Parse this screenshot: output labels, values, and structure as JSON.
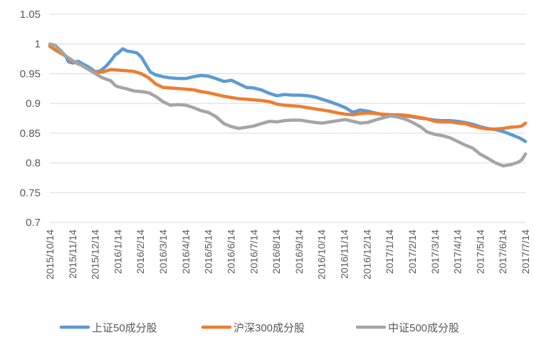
{
  "chart_data": {
    "type": "line",
    "title": "",
    "xlabel": "",
    "ylabel": "",
    "ylim": [
      0.7,
      1.05
    ],
    "yticks": [
      "0.7",
      "0.75",
      "0.8",
      "0.85",
      "0.9",
      "0.95",
      "1",
      "1.05"
    ],
    "grid": "horizontal",
    "legend_position": "bottom",
    "categories": [
      "2015/10/14",
      "2015/11/14",
      "2015/12/14",
      "2016/1/14",
      "2016/2/14",
      "2016/3/14",
      "2016/4/14",
      "2016/5/14",
      "2016/6/14",
      "2016/7/14",
      "2016/8/14",
      "2016/9/14",
      "2016/10/14",
      "2016/11/14",
      "2016/12/14",
      "2017/1/14",
      "2017/2/14",
      "2017/3/14",
      "2017/4/14",
      "2017/5/14",
      "2017/6/14",
      "2017/7/14"
    ],
    "x_end": "2017/7/14",
    "series": [
      {
        "name": "上证50成分股",
        "color": "#5B9BD5",
        "points": [
          [
            "2015/10/14",
            0.998
          ],
          [
            "2015/10/21",
            0.99
          ],
          [
            "2015/10/28",
            0.985
          ],
          [
            "2015/11/4",
            0.98
          ],
          [
            "2015/11/8",
            0.97
          ],
          [
            "2015/11/14",
            0.968
          ],
          [
            "2015/11/21",
            0.971
          ],
          [
            "2015/11/28",
            0.966
          ],
          [
            "2015/12/4",
            0.962
          ],
          [
            "2015/12/10",
            0.957
          ],
          [
            "2015/12/14",
            0.953
          ],
          [
            "2015/12/21",
            0.955
          ],
          [
            "2015/12/28",
            0.962
          ],
          [
            "2016/1/4",
            0.972
          ],
          [
            "2016/1/10",
            0.982
          ],
          [
            "2016/1/14",
            0.985
          ],
          [
            "2016/1/20",
            0.992
          ],
          [
            "2016/1/26",
            0.988
          ],
          [
            "2016/2/1",
            0.987
          ],
          [
            "2016/2/8",
            0.985
          ],
          [
            "2016/2/14",
            0.978
          ],
          [
            "2016/2/20",
            0.965
          ],
          [
            "2016/2/26",
            0.953
          ],
          [
            "2016/3/4",
            0.948
          ],
          [
            "2016/3/14",
            0.945
          ],
          [
            "2016/3/24",
            0.943
          ],
          [
            "2016/4/4",
            0.942
          ],
          [
            "2016/4/14",
            0.942
          ],
          [
            "2016/4/24",
            0.945
          ],
          [
            "2016/5/4",
            0.947
          ],
          [
            "2016/5/14",
            0.946
          ],
          [
            "2016/5/24",
            0.942
          ],
          [
            "2016/6/4",
            0.937
          ],
          [
            "2016/6/14",
            0.939
          ],
          [
            "2016/6/24",
            0.933
          ],
          [
            "2016/7/4",
            0.927
          ],
          [
            "2016/7/14",
            0.926
          ],
          [
            "2016/7/24",
            0.923
          ],
          [
            "2016/8/4",
            0.917
          ],
          [
            "2016/8/14",
            0.913
          ],
          [
            "2016/8/24",
            0.915
          ],
          [
            "2016/9/4",
            0.914
          ],
          [
            "2016/9/14",
            0.914
          ],
          [
            "2016/9/24",
            0.913
          ],
          [
            "2016/10/4",
            0.911
          ],
          [
            "2016/10/14",
            0.907
          ],
          [
            "2016/10/24",
            0.903
          ],
          [
            "2016/11/4",
            0.898
          ],
          [
            "2016/11/14",
            0.893
          ],
          [
            "2016/11/24",
            0.885
          ],
          [
            "2016/12/4",
            0.889
          ],
          [
            "2016/12/14",
            0.887
          ],
          [
            "2016/12/24",
            0.884
          ],
          [
            "2017/1/4",
            0.881
          ],
          [
            "2017/1/14",
            0.88
          ],
          [
            "2017/1/24",
            0.88
          ],
          [
            "2017/2/4",
            0.879
          ],
          [
            "2017/2/14",
            0.877
          ],
          [
            "2017/2/24",
            0.875
          ],
          [
            "2017/3/4",
            0.874
          ],
          [
            "2017/3/14",
            0.872
          ],
          [
            "2017/3/24",
            0.871
          ],
          [
            "2017/4/4",
            0.871
          ],
          [
            "2017/4/14",
            0.87
          ],
          [
            "2017/4/24",
            0.868
          ],
          [
            "2017/5/4",
            0.865
          ],
          [
            "2017/5/14",
            0.861
          ],
          [
            "2017/5/24",
            0.858
          ],
          [
            "2017/6/4",
            0.856
          ],
          [
            "2017/6/14",
            0.853
          ],
          [
            "2017/6/24",
            0.848
          ],
          [
            "2017/7/4",
            0.843
          ],
          [
            "2017/7/9",
            0.84
          ],
          [
            "2017/7/14",
            0.836
          ]
        ]
      },
      {
        "name": "沪深300成分股",
        "color": "#ED7D31",
        "points": [
          [
            "2015/10/14",
            0.996
          ],
          [
            "2015/10/24",
            0.988
          ],
          [
            "2015/11/4",
            0.98
          ],
          [
            "2015/11/14",
            0.97
          ],
          [
            "2015/11/24",
            0.965
          ],
          [
            "2015/12/4",
            0.958
          ],
          [
            "2015/12/14",
            0.952
          ],
          [
            "2015/12/24",
            0.953
          ],
          [
            "2016/1/4",
            0.957
          ],
          [
            "2016/1/14",
            0.956
          ],
          [
            "2016/1/24",
            0.955
          ],
          [
            "2016/2/4",
            0.954
          ],
          [
            "2016/2/14",
            0.95
          ],
          [
            "2016/2/24",
            0.943
          ],
          [
            "2016/3/4",
            0.933
          ],
          [
            "2016/3/14",
            0.927
          ],
          [
            "2016/3/24",
            0.926
          ],
          [
            "2016/4/4",
            0.925
          ],
          [
            "2016/4/14",
            0.924
          ],
          [
            "2016/4/24",
            0.923
          ],
          [
            "2016/5/4",
            0.92
          ],
          [
            "2016/5/14",
            0.918
          ],
          [
            "2016/5/24",
            0.915
          ],
          [
            "2016/6/4",
            0.912
          ],
          [
            "2016/6/14",
            0.91
          ],
          [
            "2016/6/24",
            0.908
          ],
          [
            "2016/7/4",
            0.907
          ],
          [
            "2016/7/14",
            0.906
          ],
          [
            "2016/7/24",
            0.905
          ],
          [
            "2016/8/4",
            0.903
          ],
          [
            "2016/8/14",
            0.899
          ],
          [
            "2016/8/24",
            0.897
          ],
          [
            "2016/9/4",
            0.896
          ],
          [
            "2016/9/14",
            0.895
          ],
          [
            "2016/9/24",
            0.893
          ],
          [
            "2016/10/4",
            0.891
          ],
          [
            "2016/10/14",
            0.889
          ],
          [
            "2016/10/24",
            0.887
          ],
          [
            "2016/11/4",
            0.884
          ],
          [
            "2016/11/14",
            0.882
          ],
          [
            "2016/11/24",
            0.881
          ],
          [
            "2016/12/4",
            0.883
          ],
          [
            "2016/12/14",
            0.884
          ],
          [
            "2016/12/24",
            0.883
          ],
          [
            "2017/1/4",
            0.882
          ],
          [
            "2017/1/14",
            0.881
          ],
          [
            "2017/1/24",
            0.881
          ],
          [
            "2017/2/4",
            0.88
          ],
          [
            "2017/2/14",
            0.878
          ],
          [
            "2017/2/24",
            0.876
          ],
          [
            "2017/3/4",
            0.874
          ],
          [
            "2017/3/14",
            0.87
          ],
          [
            "2017/3/24",
            0.869
          ],
          [
            "2017/4/4",
            0.869
          ],
          [
            "2017/4/14",
            0.867
          ],
          [
            "2017/4/24",
            0.866
          ],
          [
            "2017/5/4",
            0.862
          ],
          [
            "2017/5/14",
            0.859
          ],
          [
            "2017/5/24",
            0.857
          ],
          [
            "2017/6/4",
            0.857
          ],
          [
            "2017/6/14",
            0.858
          ],
          [
            "2017/6/24",
            0.86
          ],
          [
            "2017/7/4",
            0.861
          ],
          [
            "2017/7/9",
            0.862
          ],
          [
            "2017/7/14",
            0.867
          ]
        ]
      },
      {
        "name": "中证500成分股",
        "color": "#A5A5A5",
        "points": [
          [
            "2015/10/14",
            1.0
          ],
          [
            "2015/10/21",
            0.998
          ],
          [
            "2015/10/28",
            0.99
          ],
          [
            "2015/11/4",
            0.98
          ],
          [
            "2015/11/14",
            0.972
          ],
          [
            "2015/11/24",
            0.965
          ],
          [
            "2015/12/4",
            0.958
          ],
          [
            "2015/12/14",
            0.95
          ],
          [
            "2015/12/24",
            0.943
          ],
          [
            "2016/1/4",
            0.938
          ],
          [
            "2016/1/10",
            0.93
          ],
          [
            "2016/1/14",
            0.928
          ],
          [
            "2016/1/24",
            0.925
          ],
          [
            "2016/2/4",
            0.921
          ],
          [
            "2016/2/14",
            0.92
          ],
          [
            "2016/2/24",
            0.918
          ],
          [
            "2016/3/4",
            0.912
          ],
          [
            "2016/3/14",
            0.903
          ],
          [
            "2016/3/24",
            0.897
          ],
          [
            "2016/4/4",
            0.898
          ],
          [
            "2016/4/14",
            0.897
          ],
          [
            "2016/4/24",
            0.893
          ],
          [
            "2016/5/4",
            0.888
          ],
          [
            "2016/5/14",
            0.885
          ],
          [
            "2016/5/24",
            0.878
          ],
          [
            "2016/6/4",
            0.866
          ],
          [
            "2016/6/14",
            0.861
          ],
          [
            "2016/6/24",
            0.858
          ],
          [
            "2016/7/4",
            0.86
          ],
          [
            "2016/7/14",
            0.862
          ],
          [
            "2016/7/24",
            0.866
          ],
          [
            "2016/8/4",
            0.87
          ],
          [
            "2016/8/14",
            0.869
          ],
          [
            "2016/8/24",
            0.871
          ],
          [
            "2016/9/4",
            0.872
          ],
          [
            "2016/9/14",
            0.872
          ],
          [
            "2016/9/24",
            0.87
          ],
          [
            "2016/10/4",
            0.868
          ],
          [
            "2016/10/14",
            0.867
          ],
          [
            "2016/10/24",
            0.869
          ],
          [
            "2016/11/4",
            0.871
          ],
          [
            "2016/11/14",
            0.873
          ],
          [
            "2016/11/24",
            0.87
          ],
          [
            "2016/12/4",
            0.867
          ],
          [
            "2016/12/14",
            0.868
          ],
          [
            "2016/12/24",
            0.872
          ],
          [
            "2017/1/4",
            0.876
          ],
          [
            "2017/1/14",
            0.879
          ],
          [
            "2017/1/24",
            0.877
          ],
          [
            "2017/2/4",
            0.873
          ],
          [
            "2017/2/14",
            0.867
          ],
          [
            "2017/2/24",
            0.86
          ],
          [
            "2017/3/4",
            0.852
          ],
          [
            "2017/3/14",
            0.848
          ],
          [
            "2017/3/24",
            0.846
          ],
          [
            "2017/4/4",
            0.842
          ],
          [
            "2017/4/14",
            0.836
          ],
          [
            "2017/4/24",
            0.83
          ],
          [
            "2017/5/4",
            0.825
          ],
          [
            "2017/5/14",
            0.815
          ],
          [
            "2017/5/24",
            0.808
          ],
          [
            "2017/6/4",
            0.8
          ],
          [
            "2017/6/14",
            0.795
          ],
          [
            "2017/6/24",
            0.797
          ],
          [
            "2017/7/4",
            0.801
          ],
          [
            "2017/7/9",
            0.805
          ],
          [
            "2017/7/14",
            0.815
          ]
        ]
      }
    ]
  }
}
